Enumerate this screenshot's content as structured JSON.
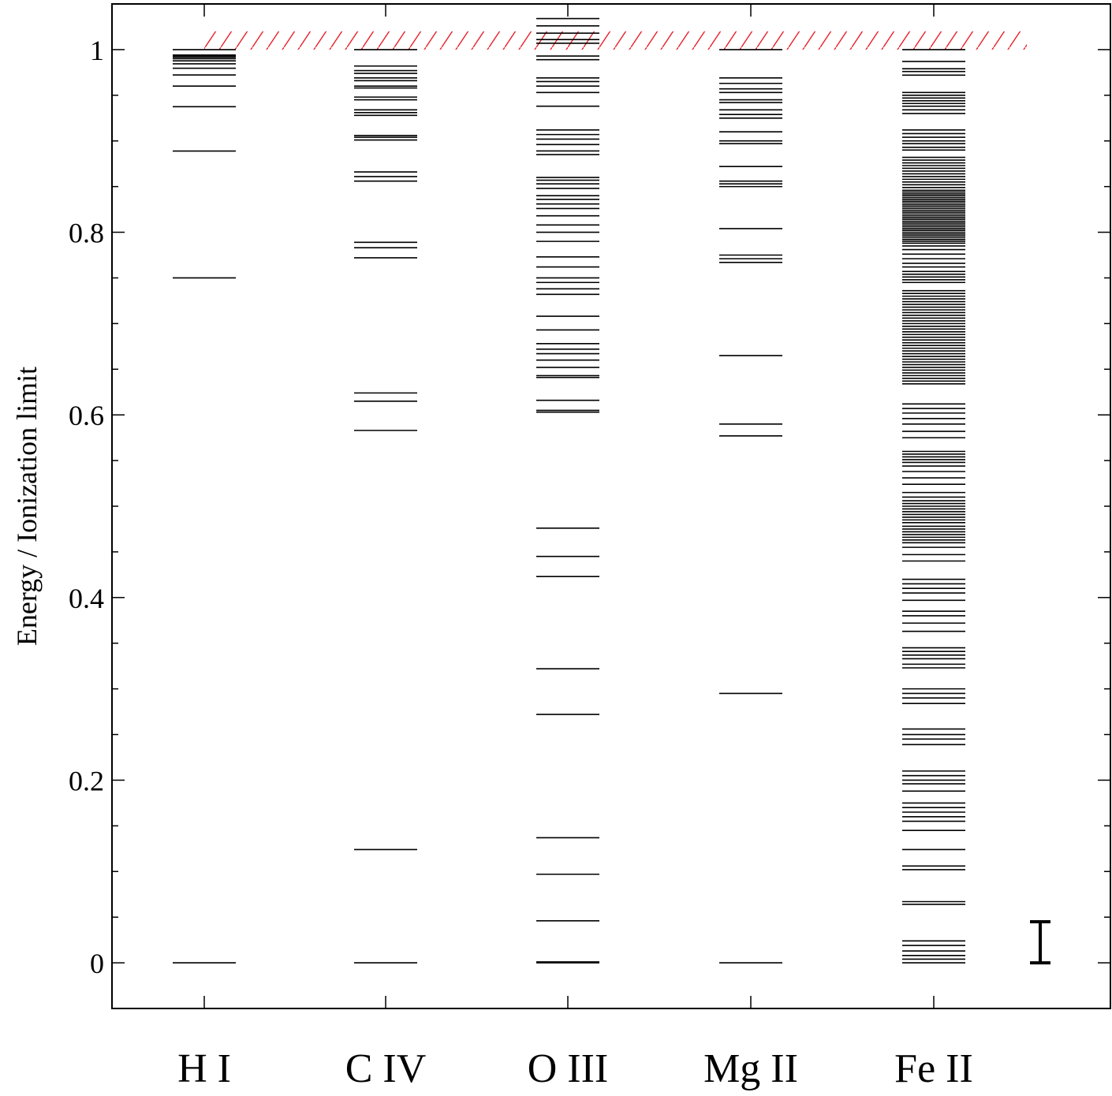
{
  "chart_data": {
    "type": "scatter",
    "title": "",
    "ylabel": "Energy / Ionization limit",
    "xlabel": "",
    "ylim": [
      -0.05,
      1.05
    ],
    "yticks": [
      {
        "value": 0,
        "label": "0"
      },
      {
        "value": 0.2,
        "label": "0.2"
      },
      {
        "value": 0.4,
        "label": "0.4"
      },
      {
        "value": 0.6,
        "label": "0.6"
      },
      {
        "value": 0.8,
        "label": "0.8"
      },
      {
        "value": 1,
        "label": "1"
      }
    ],
    "minor_tick_step": 0.05,
    "grid": false,
    "ionization_limit": {
      "value": 1.0,
      "top": 1.02,
      "color": "#e8202a",
      "style": "hatched"
    },
    "error_bar": {
      "low": 0.0,
      "high": 0.045,
      "color": "#000000"
    },
    "line_color": "#000000",
    "series": [
      {
        "name": "H I",
        "levels": [
          0,
          0.75,
          0.8889,
          0.9375,
          0.96,
          0.9722,
          0.9796,
          0.9844,
          0.9877,
          0.99,
          0.9917,
          0.9931,
          0.9941,
          1.0
        ]
      },
      {
        "name": "C IV",
        "levels": [
          0,
          0.124,
          0.583,
          0.615,
          0.624,
          0.772,
          0.783,
          0.789,
          0.856,
          0.861,
          0.866,
          0.901,
          0.904,
          0.906,
          0.928,
          0.931,
          0.934,
          0.945,
          0.948,
          0.958,
          0.96,
          0.966,
          0.969,
          0.974,
          0.977,
          0.982,
          1.0
        ]
      },
      {
        "name": "O III",
        "levels": [
          0,
          0.001,
          0.046,
          0.097,
          0.137,
          0.272,
          0.322,
          0.423,
          0.445,
          0.476,
          0.603,
          0.605,
          0.616,
          0.641,
          0.643,
          0.652,
          0.66,
          0.667,
          0.672,
          0.678,
          0.693,
          0.708,
          0.732,
          0.738,
          0.745,
          0.75,
          0.762,
          0.773,
          0.79,
          0.8,
          0.808,
          0.818,
          0.826,
          0.831,
          0.836,
          0.84,
          0.848,
          0.853,
          0.857,
          0.86,
          0.885,
          0.889,
          0.896,
          0.902,
          0.907,
          0.912,
          0.938,
          0.953,
          0.96,
          0.965,
          0.969,
          0.989,
          0.993,
          1.007,
          1.011,
          1.018,
          1.026,
          1.034
        ]
      },
      {
        "name": "Mg II",
        "levels": [
          0,
          0.295,
          0.577,
          0.59,
          0.665,
          0.767,
          0.771,
          0.775,
          0.804,
          0.85,
          0.853,
          0.856,
          0.872,
          0.897,
          0.9,
          0.91,
          0.925,
          0.929,
          0.934,
          0.942,
          0.945,
          0.953,
          0.957,
          0.963,
          0.969,
          1.0
        ]
      },
      {
        "name": "Fe II",
        "levels": [
          0,
          0.004,
          0.008,
          0.013,
          0.019,
          0.024,
          0.064,
          0.067,
          0.102,
          0.106,
          0.124,
          0.145,
          0.155,
          0.16,
          0.165,
          0.17,
          0.175,
          0.188,
          0.196,
          0.2,
          0.205,
          0.21,
          0.239,
          0.245,
          0.25,
          0.256,
          0.284,
          0.29,
          0.295,
          0.3,
          0.323,
          0.327,
          0.333,
          0.337,
          0.341,
          0.345,
          0.363,
          0.372,
          0.38,
          0.385,
          0.397,
          0.405,
          0.41,
          0.415,
          0.42,
          0.44,
          0.447,
          0.455,
          0.46,
          0.463,
          0.466,
          0.469,
          0.472,
          0.475,
          0.478,
          0.482,
          0.485,
          0.488,
          0.491,
          0.494,
          0.497,
          0.5,
          0.503,
          0.506,
          0.51,
          0.515,
          0.524,
          0.531,
          0.538,
          0.544,
          0.548,
          0.551,
          0.554,
          0.557,
          0.56,
          0.575,
          0.582,
          0.59,
          0.596,
          0.602,
          0.607,
          0.612,
          0.634,
          0.637,
          0.64,
          0.643,
          0.646,
          0.649,
          0.652,
          0.655,
          0.658,
          0.661,
          0.664,
          0.667,
          0.67,
          0.673,
          0.676,
          0.679,
          0.682,
          0.685,
          0.688,
          0.691,
          0.694,
          0.697,
          0.7,
          0.703,
          0.706,
          0.709,
          0.712,
          0.715,
          0.718,
          0.721,
          0.724,
          0.727,
          0.73,
          0.733,
          0.736,
          0.745,
          0.748,
          0.751,
          0.754,
          0.757,
          0.762,
          0.766,
          0.771,
          0.776,
          0.781,
          0.785,
          0.788,
          0.79,
          0.792,
          0.794,
          0.796,
          0.798,
          0.8,
          0.802,
          0.804,
          0.806,
          0.808,
          0.81,
          0.812,
          0.814,
          0.816,
          0.818,
          0.82,
          0.822,
          0.824,
          0.826,
          0.828,
          0.83,
          0.832,
          0.834,
          0.836,
          0.838,
          0.84,
          0.842,
          0.844,
          0.846,
          0.849,
          0.852,
          0.855,
          0.858,
          0.861,
          0.864,
          0.867,
          0.87,
          0.873,
          0.876,
          0.879,
          0.882,
          0.89,
          0.893,
          0.897,
          0.9,
          0.904,
          0.908,
          0.912,
          0.93,
          0.934,
          0.938,
          0.941,
          0.944,
          0.947,
          0.95,
          0.953,
          0.972,
          0.976,
          0.979,
          0.987,
          1.0
        ]
      }
    ]
  }
}
